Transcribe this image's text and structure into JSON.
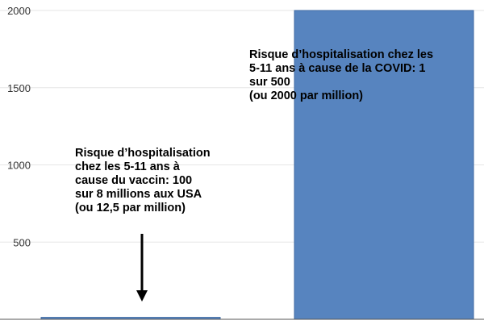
{
  "chart_data": {
    "type": "bar",
    "categories": [
      "",
      ""
    ],
    "values": [
      12.5,
      2000
    ],
    "ylim": [
      0,
      2000
    ],
    "yticks": [
      500,
      1000,
      1500,
      2000
    ],
    "grid": true,
    "bar_color": "#5784bf",
    "bar_stroke": "#3f6aa3",
    "gridline_color": "#e6e6e6",
    "annotations": [
      {
        "text": "Risque d’hospitalisation\nchez les 5-11 ans à\ncause du vaccin: 100\nsur 8 millions aux USA\n(ou 12,5 par million)",
        "target_category": 0,
        "arrow": true
      },
      {
        "text": "Risque d’hospitalisation chez les\n5-11 ans à cause de la COVID: 1\nsur 500\n(ou 2000 par million)",
        "target_category": 1,
        "arrow": false
      }
    ]
  }
}
